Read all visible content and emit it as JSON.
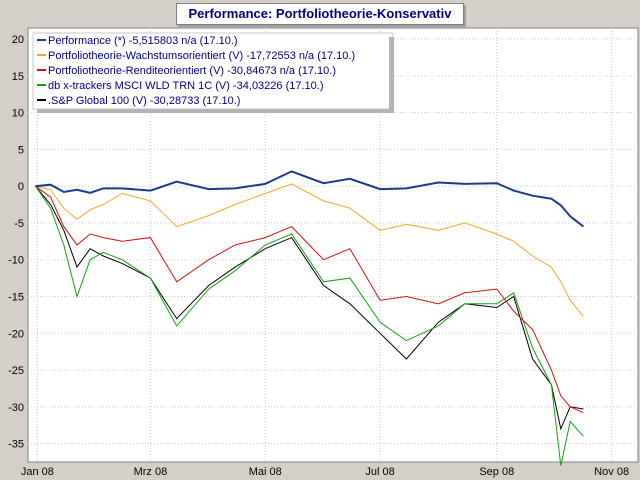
{
  "title": "Performance: Portfoliotheorie-Konservativ",
  "chart_data": {
    "type": "line",
    "title": "Performance: Portfoliotheorie-Konservativ",
    "xlabel": "",
    "ylabel": "",
    "ylim": [
      -37.5,
      21.5
    ],
    "y_ticks": [
      20,
      15,
      10,
      5,
      0,
      -5,
      -10,
      -15,
      -20,
      -25,
      -30,
      -35
    ],
    "x_ticks": [
      "Jan 08",
      "Mrz 08",
      "Mai 08",
      "Jul 08",
      "Sep 08",
      "Nov 08"
    ],
    "x_tick_dates": [
      "2008-01-01",
      "2008-03-01",
      "2008-05-01",
      "2008-07-01",
      "2008-09-01",
      "2008-11-01"
    ],
    "x_range": [
      "2007-12-27",
      "2008-11-15"
    ],
    "grid": true,
    "legend_position": "top-left",
    "series": [
      {
        "name": "Performance (*) -5,515803 n/a (17.10.)",
        "color": "#1a3c8c",
        "x": [
          "2007-12-31",
          "2008-01-08",
          "2008-01-15",
          "2008-01-22",
          "2008-01-29",
          "2008-02-05",
          "2008-02-15",
          "2008-03-01",
          "2008-03-15",
          "2008-04-01",
          "2008-04-15",
          "2008-05-01",
          "2008-05-15",
          "2008-06-01",
          "2008-06-15",
          "2008-07-01",
          "2008-07-15",
          "2008-08-01",
          "2008-08-15",
          "2008-09-01",
          "2008-09-10",
          "2008-09-20",
          "2008-09-30",
          "2008-10-05",
          "2008-10-10",
          "2008-10-17"
        ],
        "values": [
          0,
          0.2,
          -0.8,
          -0.5,
          -0.9,
          -0.3,
          -0.3,
          -0.6,
          0.6,
          -0.4,
          -0.3,
          0.3,
          2.0,
          0.4,
          1.0,
          -0.4,
          -0.3,
          0.5,
          0.3,
          0.4,
          -0.6,
          -1.3,
          -1.7,
          -2.6,
          -4.1,
          -5.5
        ]
      },
      {
        "name": "Portfoliotheorie-Wachstumsorientiert (V) -17,72553 n/a (17.10.)",
        "color": "#f5a623",
        "x": [
          "2007-12-31",
          "2008-01-08",
          "2008-01-15",
          "2008-01-22",
          "2008-01-29",
          "2008-02-05",
          "2008-02-15",
          "2008-03-01",
          "2008-03-15",
          "2008-04-01",
          "2008-04-15",
          "2008-05-01",
          "2008-05-15",
          "2008-06-01",
          "2008-06-15",
          "2008-07-01",
          "2008-07-15",
          "2008-08-01",
          "2008-08-15",
          "2008-09-01",
          "2008-09-10",
          "2008-09-20",
          "2008-09-30",
          "2008-10-05",
          "2008-10-10",
          "2008-10-17"
        ],
        "values": [
          0,
          -0.5,
          -3.0,
          -4.5,
          -3.2,
          -2.5,
          -1.0,
          -2.0,
          -5.5,
          -4.0,
          -2.5,
          -1.0,
          0.3,
          -2.0,
          -3.0,
          -6.0,
          -5.2,
          -6.0,
          -5.0,
          -6.5,
          -7.5,
          -9.5,
          -11.0,
          -13.0,
          -15.5,
          -17.7
        ]
      },
      {
        "name": "Portfoliotheorie-Renditeorientiert (V) -30,84673 n/a (17.10.)",
        "color": "#d01010",
        "x": [
          "2007-12-31",
          "2008-01-08",
          "2008-01-15",
          "2008-01-22",
          "2008-01-29",
          "2008-02-05",
          "2008-02-15",
          "2008-03-01",
          "2008-03-15",
          "2008-04-01",
          "2008-04-15",
          "2008-05-01",
          "2008-05-15",
          "2008-06-01",
          "2008-06-15",
          "2008-07-01",
          "2008-07-15",
          "2008-08-01",
          "2008-08-15",
          "2008-09-01",
          "2008-09-10",
          "2008-09-20",
          "2008-09-30",
          "2008-10-05",
          "2008-10-10",
          "2008-10-17"
        ],
        "values": [
          0,
          -1.5,
          -5.5,
          -8.0,
          -6.5,
          -7.0,
          -7.5,
          -7.0,
          -13.0,
          -10.0,
          -8.0,
          -7.0,
          -5.5,
          -10.0,
          -8.5,
          -15.5,
          -15.0,
          -16.0,
          -14.5,
          -14.0,
          -17.0,
          -19.5,
          -25.0,
          -28.5,
          -30.0,
          -30.8
        ]
      },
      {
        "name": "db x-trackers MSCI WLD TRN 1C (V) -34,03226 (17.10.)",
        "color": "#14a014",
        "x": [
          "2007-12-31",
          "2008-01-08",
          "2008-01-15",
          "2008-01-22",
          "2008-01-29",
          "2008-02-05",
          "2008-02-15",
          "2008-03-01",
          "2008-03-15",
          "2008-04-01",
          "2008-04-15",
          "2008-05-01",
          "2008-05-15",
          "2008-06-01",
          "2008-06-15",
          "2008-07-01",
          "2008-07-15",
          "2008-08-01",
          "2008-08-15",
          "2008-09-01",
          "2008-09-10",
          "2008-09-20",
          "2008-09-30",
          "2008-10-05",
          "2008-10-10",
          "2008-10-17"
        ],
        "values": [
          0,
          -3.0,
          -8.0,
          -15.0,
          -10.0,
          -9.0,
          -10.0,
          -12.5,
          -19.0,
          -14.0,
          -11.5,
          -8.0,
          -6.5,
          -13.0,
          -12.5,
          -18.5,
          -21.0,
          -19.0,
          -16.0,
          -16.0,
          -14.5,
          -22.0,
          -27.0,
          -38.0,
          -32.0,
          -34.0
        ]
      },
      {
        "name": ".S&P Global 100 (V) -30,28733 (17.10.)",
        "color": "#000000",
        "x": [
          "2007-12-31",
          "2008-01-08",
          "2008-01-15",
          "2008-01-22",
          "2008-01-29",
          "2008-02-05",
          "2008-02-15",
          "2008-03-01",
          "2008-03-15",
          "2008-04-01",
          "2008-04-15",
          "2008-05-01",
          "2008-05-15",
          "2008-06-01",
          "2008-06-15",
          "2008-07-01",
          "2008-07-15",
          "2008-08-01",
          "2008-08-15",
          "2008-09-01",
          "2008-09-10",
          "2008-09-20",
          "2008-09-30",
          "2008-10-05",
          "2008-10-10",
          "2008-10-17"
        ],
        "values": [
          0,
          -2.5,
          -6.0,
          -11.0,
          -8.5,
          -9.5,
          -10.5,
          -12.5,
          -18.0,
          -13.5,
          -11.0,
          -8.5,
          -7.0,
          -13.5,
          -16.0,
          -20.0,
          -23.5,
          -18.5,
          -16.0,
          -16.5,
          -15.0,
          -23.5,
          -27.0,
          -33.0,
          -30.0,
          -30.3
        ]
      }
    ]
  }
}
